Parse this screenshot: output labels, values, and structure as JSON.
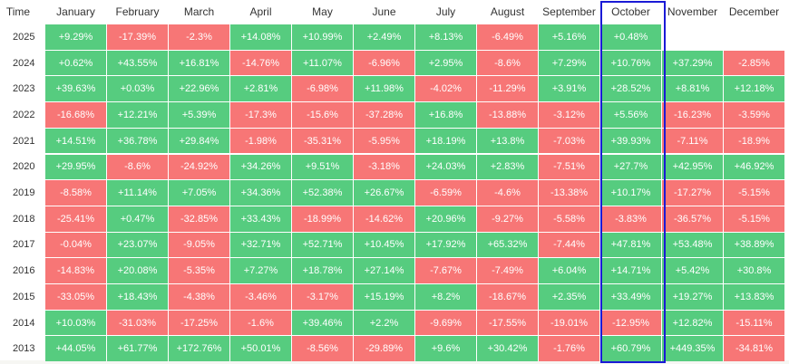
{
  "header": {
    "columns": [
      "Time",
      "January",
      "February",
      "March",
      "April",
      "May",
      "June",
      "July",
      "August",
      "September",
      "October",
      "November",
      "December"
    ]
  },
  "table": {
    "rows": [
      [
        "2025",
        "+9.29%",
        "-17.39%",
        "-2.3%",
        "+14.08%",
        "+10.99%",
        "+2.49%",
        "+8.13%",
        "-6.49%",
        "+5.16%",
        "+0.48%",
        null,
        null
      ],
      [
        "2024",
        "+0.62%",
        "+43.55%",
        "+16.81%",
        "-14.76%",
        "+11.07%",
        "-6.96%",
        "+2.95%",
        "-8.6%",
        "+7.29%",
        "+10.76%",
        "+37.29%",
        "-2.85%"
      ],
      [
        "2023",
        "+39.63%",
        "+0.03%",
        "+22.96%",
        "+2.81%",
        "-6.98%",
        "+11.98%",
        "-4.02%",
        "-11.29%",
        "+3.91%",
        "+28.52%",
        "+8.81%",
        "+12.18%"
      ],
      [
        "2022",
        "-16.68%",
        "+12.21%",
        "+5.39%",
        "-17.3%",
        "-15.6%",
        "-37.28%",
        "+16.8%",
        "-13.88%",
        "-3.12%",
        "+5.56%",
        "-16.23%",
        "-3.59%"
      ],
      [
        "2021",
        "+14.51%",
        "+36.78%",
        "+29.84%",
        "-1.98%",
        "-35.31%",
        "-5.95%",
        "+18.19%",
        "+13.8%",
        "-7.03%",
        "+39.93%",
        "-7.11%",
        "-18.9%"
      ],
      [
        "2020",
        "+29.95%",
        "-8.6%",
        "-24.92%",
        "+34.26%",
        "+9.51%",
        "-3.18%",
        "+24.03%",
        "+2.83%",
        "-7.51%",
        "+27.7%",
        "+42.95%",
        "+46.92%"
      ],
      [
        "2019",
        "-8.58%",
        "+11.14%",
        "+7.05%",
        "+34.36%",
        "+52.38%",
        "+26.67%",
        "-6.59%",
        "-4.6%",
        "-13.38%",
        "+10.17%",
        "-17.27%",
        "-5.15%"
      ],
      [
        "2018",
        "-25.41%",
        "+0.47%",
        "-32.85%",
        "+33.43%",
        "-18.99%",
        "-14.62%",
        "+20.96%",
        "-9.27%",
        "-5.58%",
        "-3.83%",
        "-36.57%",
        "-5.15%"
      ],
      [
        "2017",
        "-0.04%",
        "+23.07%",
        "-9.05%",
        "+32.71%",
        "+52.71%",
        "+10.45%",
        "+17.92%",
        "+65.32%",
        "-7.44%",
        "+47.81%",
        "+53.48%",
        "+38.89%"
      ],
      [
        "2016",
        "-14.83%",
        "+20.08%",
        "-5.35%",
        "+7.27%",
        "+18.78%",
        "+27.14%",
        "-7.67%",
        "-7.49%",
        "+6.04%",
        "+14.71%",
        "+5.42%",
        "+30.8%"
      ],
      [
        "2015",
        "-33.05%",
        "+18.43%",
        "-4.38%",
        "-3.46%",
        "-3.17%",
        "+15.19%",
        "+8.2%",
        "-18.67%",
        "+2.35%",
        "+33.49%",
        "+19.27%",
        "+13.83%"
      ],
      [
        "2014",
        "+10.03%",
        "-31.03%",
        "-17.25%",
        "-1.6%",
        "+39.46%",
        "+2.2%",
        "-9.69%",
        "-17.55%",
        "-19.01%",
        "-12.95%",
        "+12.82%",
        "-15.11%"
      ],
      [
        "2013",
        "+44.05%",
        "+61.77%",
        "+172.76%",
        "+50.01%",
        "-8.56%",
        "-29.89%",
        "+9.6%",
        "+30.42%",
        "-1.76%",
        "+60.79%",
        "+449.35%",
        "-34.81%"
      ]
    ]
  }
}
